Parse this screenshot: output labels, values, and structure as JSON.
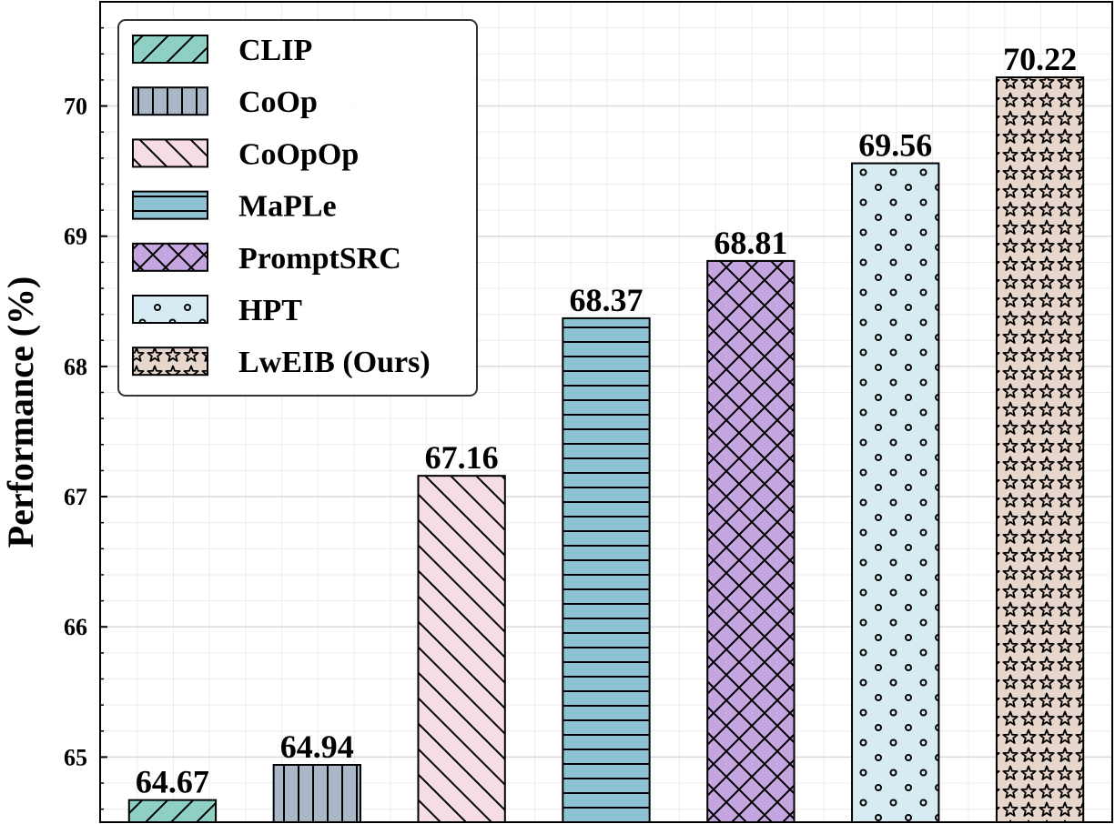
{
  "chart_data": {
    "type": "bar",
    "title": "",
    "xlabel": "",
    "ylabel": "Performance (%)",
    "ylim": [
      64.5,
      70.8
    ],
    "yticks": [
      "65",
      "66",
      "67",
      "68",
      "69",
      "70"
    ],
    "grid": true,
    "legend_position": "top-left",
    "categories": [
      "CLIP",
      "CoOp",
      "CoOpOp",
      "MaPLe",
      "PromptSRC",
      "HPT",
      "LwEIB (Ours)"
    ],
    "values": [
      64.67,
      64.94,
      67.16,
      68.37,
      68.81,
      69.56,
      70.22
    ],
    "value_labels": [
      "64.67",
      "64.94",
      "67.16",
      "68.37",
      "68.81",
      "69.56",
      "70.22"
    ],
    "colors": [
      "#8fd0c4",
      "#a9b7c6",
      "#f5dce6",
      "#8fc3d4",
      "#c4a5df",
      "#d6ecf2",
      "#e6d6cc"
    ],
    "hatches": [
      "diagonal",
      "vertical",
      "back-diagonal",
      "horizontal",
      "cross",
      "dots",
      "stars"
    ]
  }
}
